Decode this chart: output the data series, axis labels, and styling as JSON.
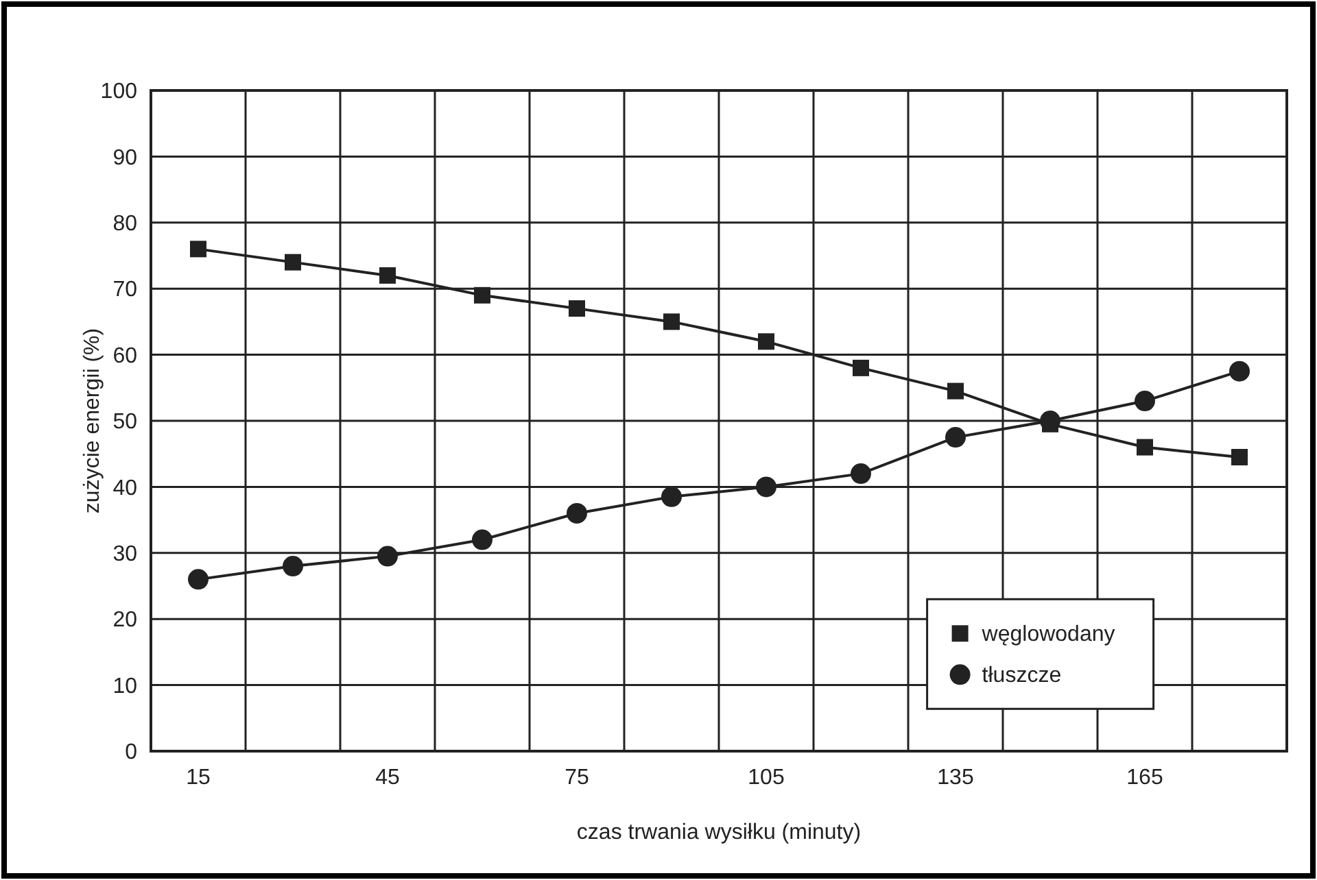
{
  "chart_data": {
    "type": "line",
    "xlabel": "czas trwania wysiłku (minuty)",
    "ylabel": "zużycie energii (%)",
    "categories": [
      "15",
      null,
      "45",
      null,
      "75",
      null,
      "105",
      null,
      "135",
      null,
      "165",
      null
    ],
    "series": [
      {
        "name": "węglowodany",
        "color": "#222222",
        "marker": "square",
        "values": [
          76,
          74,
          72,
          69,
          67,
          65,
          62,
          58,
          54.5,
          49.5,
          46,
          44.5
        ]
      },
      {
        "name": "tłuszcze",
        "color": "#222222",
        "marker": "circle",
        "values": [
          26,
          28,
          29.5,
          32,
          36,
          38.5,
          40,
          42,
          47.5,
          50,
          53,
          57.5
        ]
      }
    ],
    "ylim": [
      0,
      100
    ],
    "yticks": [
      0,
      10,
      20,
      30,
      40,
      50,
      60,
      70,
      80,
      90,
      100
    ],
    "grid": true,
    "legend": "bottom right",
    "line_style": "solid"
  }
}
